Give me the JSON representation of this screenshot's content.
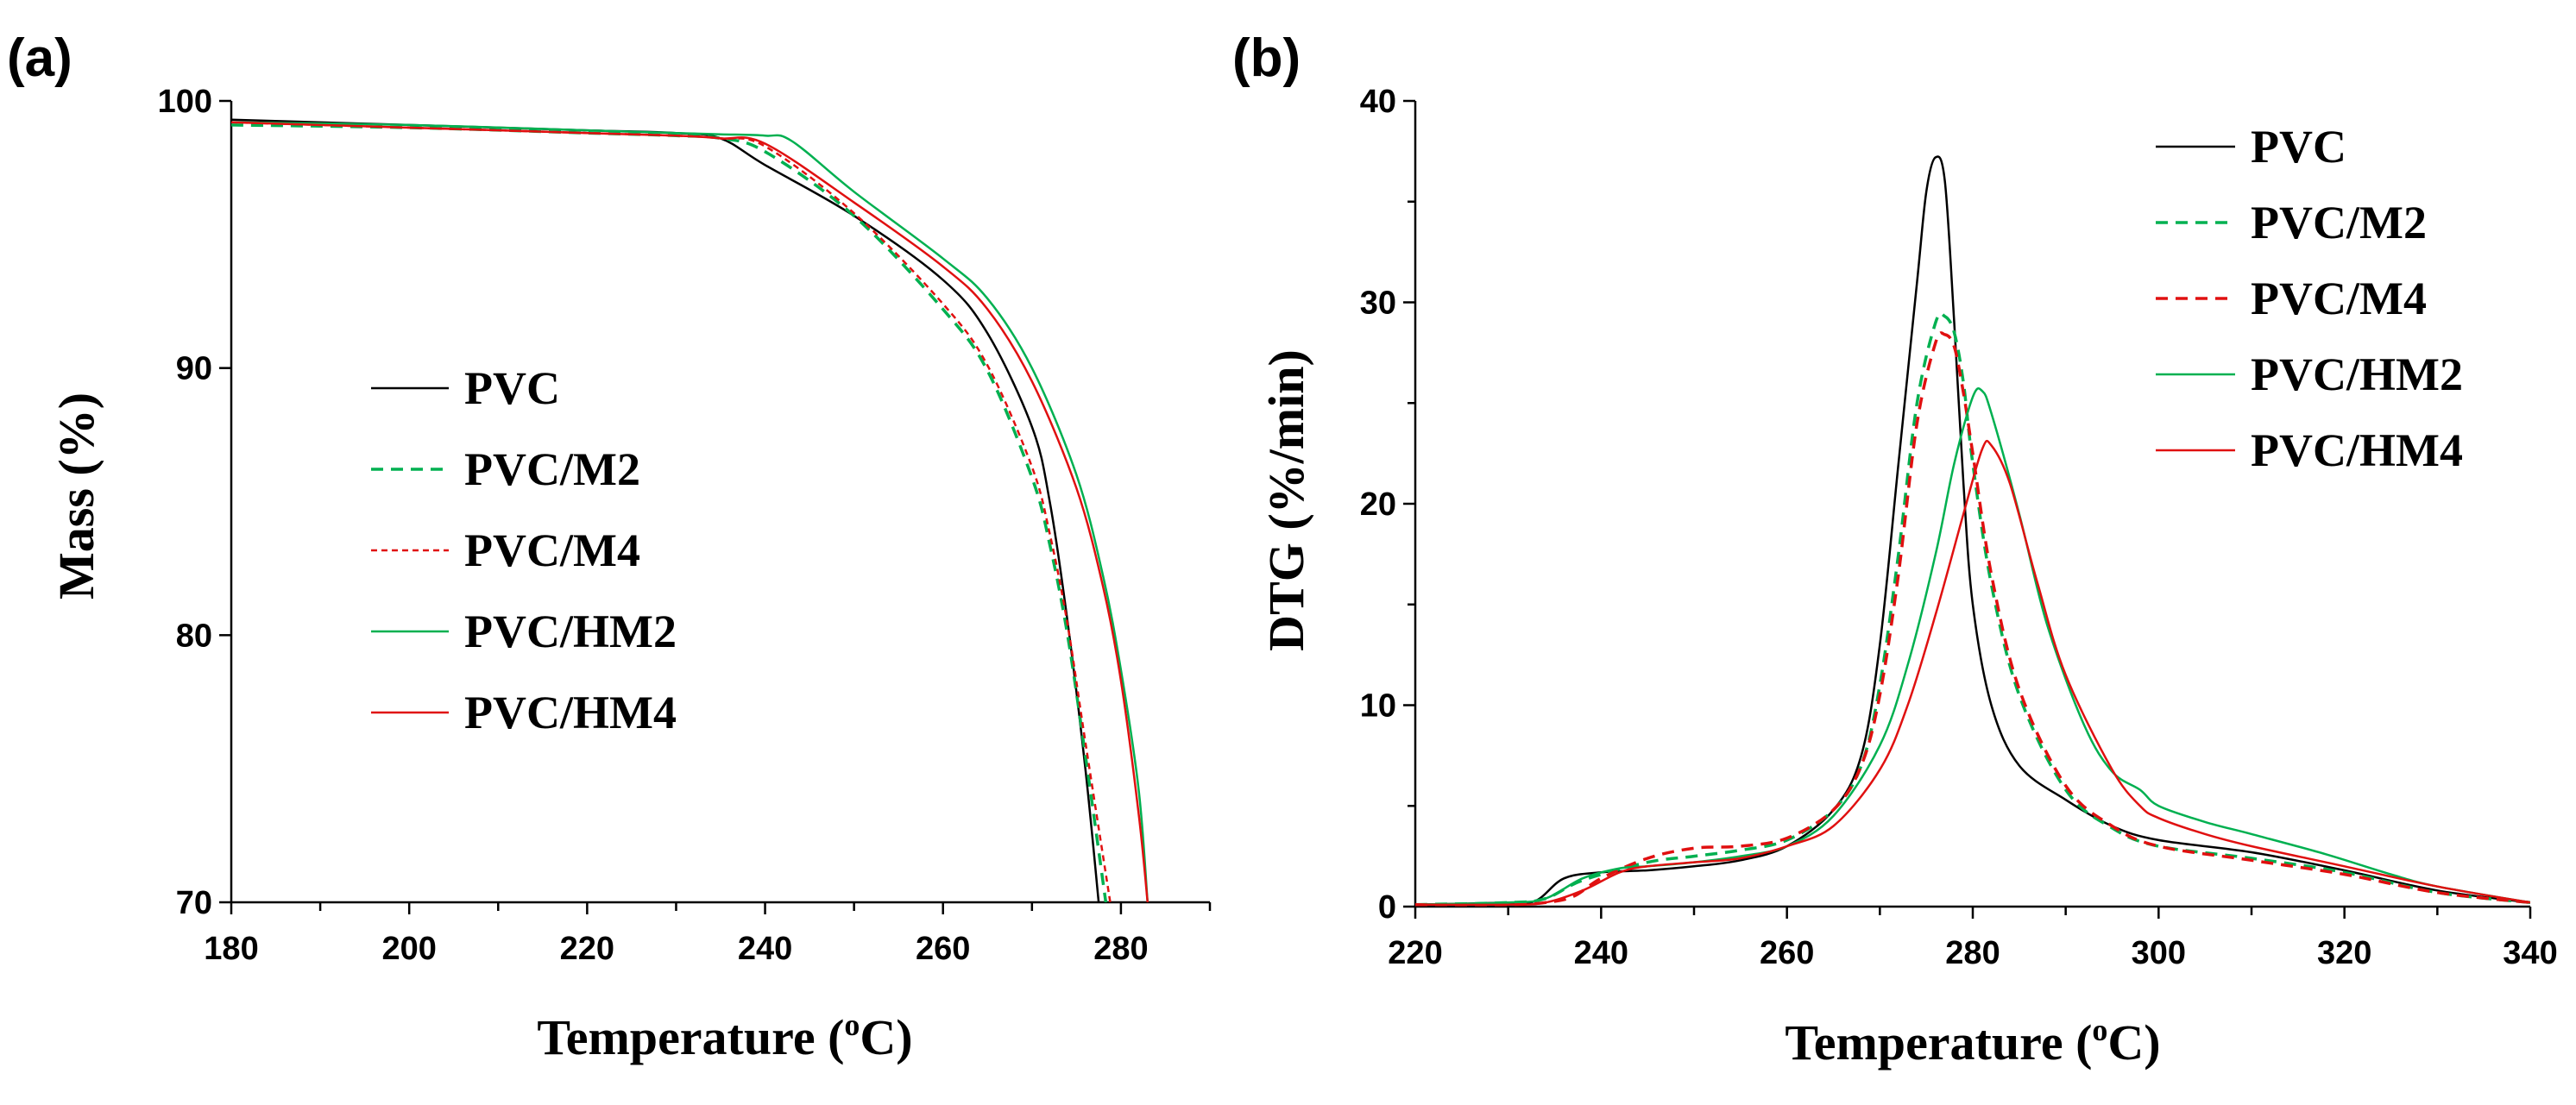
{
  "chart_data": [
    {
      "id": "a",
      "type": "line",
      "panel_label": "(a)",
      "xlabel": "Temperature (°C)",
      "xlabel_parts": {
        "pre": "Temperature (",
        "sup": "o",
        "post": "C)"
      },
      "ylabel": "Mass (%)",
      "xlim": [
        180,
        290
      ],
      "ylim": [
        70,
        100
      ],
      "xticks": [
        180,
        200,
        220,
        240,
        260,
        280
      ],
      "yticks": [
        70,
        80,
        90,
        100
      ],
      "legend_position": "center-left",
      "series": [
        {
          "name": "PVC",
          "color": "#000000",
          "dash": "solid",
          "width": 2.5,
          "x": [
            180,
            200,
            220,
            230,
            235,
            240,
            250,
            260,
            265,
            270,
            272,
            274,
            276,
            277.5
          ],
          "y": [
            99.3,
            99.1,
            98.9,
            98.8,
            98.6,
            97.6,
            95.7,
            93.3,
            91.3,
            87.8,
            85.0,
            80.5,
            75.0,
            70
          ]
        },
        {
          "name": "PVC/M2",
          "color": "#00b050",
          "dash": "dashed",
          "width": 3.5,
          "x": [
            180,
            200,
            220,
            230,
            235,
            240,
            250,
            260,
            265,
            270,
            272,
            274,
            276,
            278.3
          ],
          "y": [
            99.1,
            99.0,
            98.8,
            98.7,
            98.6,
            98.1,
            95.7,
            92.2,
            89.9,
            85.9,
            83.4,
            80.0,
            75.5,
            70
          ]
        },
        {
          "name": "PVC/M4",
          "color": "#e01010",
          "dash": "short-dashed",
          "width": 2.5,
          "x": [
            180,
            200,
            220,
            230,
            235,
            240,
            250,
            260,
            265,
            270,
            272,
            274,
            276,
            278.8
          ],
          "y": [
            99.2,
            99.0,
            98.8,
            98.7,
            98.6,
            98.3,
            95.8,
            92.4,
            90.1,
            86.3,
            83.8,
            80.4,
            76.0,
            70
          ]
        },
        {
          "name": "PVC/HM2",
          "color": "#00b050",
          "dash": "solid",
          "width": 2.5,
          "x": [
            180,
            200,
            220,
            230,
            235,
            240,
            243,
            250,
            260,
            265,
            270,
            275,
            278,
            280,
            282,
            283
          ],
          "y": [
            99.2,
            99.1,
            98.9,
            98.8,
            98.75,
            98.7,
            98.5,
            96.6,
            94.1,
            92.6,
            90.0,
            86.0,
            82.2,
            78.7,
            74.2,
            70
          ]
        },
        {
          "name": "PVC/HM4",
          "color": "#e01010",
          "dash": "solid",
          "width": 2.5,
          "x": [
            180,
            200,
            220,
            230,
            235,
            240,
            250,
            260,
            265,
            270,
            275,
            278,
            280,
            282,
            283
          ],
          "y": [
            99.2,
            99.0,
            98.8,
            98.7,
            98.6,
            98.4,
            96.2,
            93.8,
            92.2,
            89.5,
            85.5,
            81.8,
            78.3,
            73.3,
            70
          ]
        }
      ]
    },
    {
      "id": "b",
      "type": "line",
      "panel_label": "(b)",
      "xlabel": "Temperature (°C)",
      "xlabel_parts": {
        "pre": "Temperature (",
        "sup": "o",
        "post": "C)"
      },
      "ylabel": "DTG (%/min)",
      "xlim": [
        220,
        340
      ],
      "ylim": [
        0,
        40
      ],
      "xticks": [
        220,
        240,
        260,
        280,
        300,
        320,
        340
      ],
      "yticks": [
        0,
        10,
        20,
        30,
        40
      ],
      "legend_position": "top-right",
      "series": [
        {
          "name": "PVC",
          "color": "#000000",
          "dash": "solid",
          "width": 2.5,
          "x": [
            220,
            230,
            233,
            236,
            240,
            245,
            250,
            255,
            260,
            265,
            268,
            270,
            272,
            274,
            275,
            276,
            277,
            278,
            279,
            280,
            282,
            285,
            290,
            295,
            300,
            310,
            320,
            330,
            340
          ],
          "y": [
            0.1,
            0.2,
            0.3,
            1.4,
            1.7,
            1.8,
            2.0,
            2.3,
            3.0,
            4.8,
            7.5,
            13.0,
            22.0,
            31.0,
            35.5,
            37.2,
            36.0,
            29.0,
            21.0,
            15.0,
            10.0,
            7.0,
            5.3,
            4.0,
            3.3,
            2.7,
            1.8,
            0.8,
            0.2
          ]
        },
        {
          "name": "PVC/M2",
          "color": "#00b050",
          "dash": "dashed",
          "width": 3.5,
          "x": [
            220,
            230,
            234,
            238,
            245,
            250,
            255,
            260,
            265,
            268,
            270,
            272,
            274,
            276,
            277,
            278,
            279,
            280,
            282,
            285,
            290,
            295,
            300,
            310,
            320,
            330,
            340
          ],
          "y": [
            0.1,
            0.2,
            0.4,
            1.3,
            2.2,
            2.5,
            2.8,
            3.3,
            4.8,
            7.0,
            11.0,
            17.5,
            25.0,
            29.0,
            29.3,
            28.5,
            26.0,
            22.0,
            16.0,
            10.5,
            5.8,
            3.9,
            3.0,
            2.4,
            1.7,
            0.7,
            0.2
          ]
        },
        {
          "name": "PVC/M4",
          "color": "#e01010",
          "dash": "dashed",
          "width": 3.5,
          "x": [
            220,
            230,
            234,
            237,
            240,
            245,
            250,
            255,
            260,
            265,
            268,
            270,
            272,
            274,
            276,
            277,
            278,
            279,
            280,
            282,
            285,
            290,
            295,
            300,
            310,
            320,
            330,
            340
          ],
          "y": [
            0.1,
            0.1,
            0.2,
            0.5,
            1.4,
            2.4,
            2.9,
            3.0,
            3.4,
            4.8,
            7.0,
            10.5,
            16.5,
            24.0,
            28.0,
            28.4,
            27.8,
            25.5,
            22.5,
            16.5,
            10.8,
            6.0,
            4.0,
            3.0,
            2.3,
            1.6,
            0.7,
            0.2
          ]
        },
        {
          "name": "PVC/HM2",
          "color": "#00b050",
          "dash": "solid",
          "width": 2.5,
          "x": [
            220,
            230,
            234,
            238,
            242,
            245,
            250,
            255,
            260,
            265,
            270,
            273,
            276,
            278,
            280,
            281,
            282,
            285,
            288,
            292,
            295,
            298,
            300,
            305,
            310,
            318,
            325,
            330,
            340
          ],
          "y": [
            0.1,
            0.2,
            0.4,
            1.4,
            1.9,
            2.0,
            2.2,
            2.5,
            3.0,
            4.5,
            8.0,
            12.0,
            17.5,
            22.0,
            25.3,
            25.6,
            24.5,
            19.5,
            14.0,
            9.0,
            6.7,
            5.8,
            5.0,
            4.2,
            3.6,
            2.6,
            1.6,
            1.0,
            0.2
          ]
        },
        {
          "name": "PVC/HM4",
          "color": "#e01010",
          "dash": "solid",
          "width": 2.5,
          "x": [
            220,
            230,
            234,
            238,
            242,
            245,
            250,
            255,
            260,
            265,
            270,
            273,
            276,
            279,
            281,
            282,
            284,
            287,
            290,
            295,
            298,
            300,
            305,
            310,
            320,
            330,
            340
          ],
          "y": [
            0.1,
            0.1,
            0.2,
            0.8,
            1.7,
            2.0,
            2.2,
            2.4,
            3.0,
            4.0,
            6.8,
            10.0,
            14.5,
            19.5,
            22.7,
            22.9,
            21.0,
            16.0,
            11.5,
            6.8,
            5.0,
            4.4,
            3.6,
            3.0,
            2.0,
            1.0,
            0.2
          ]
        }
      ]
    }
  ]
}
